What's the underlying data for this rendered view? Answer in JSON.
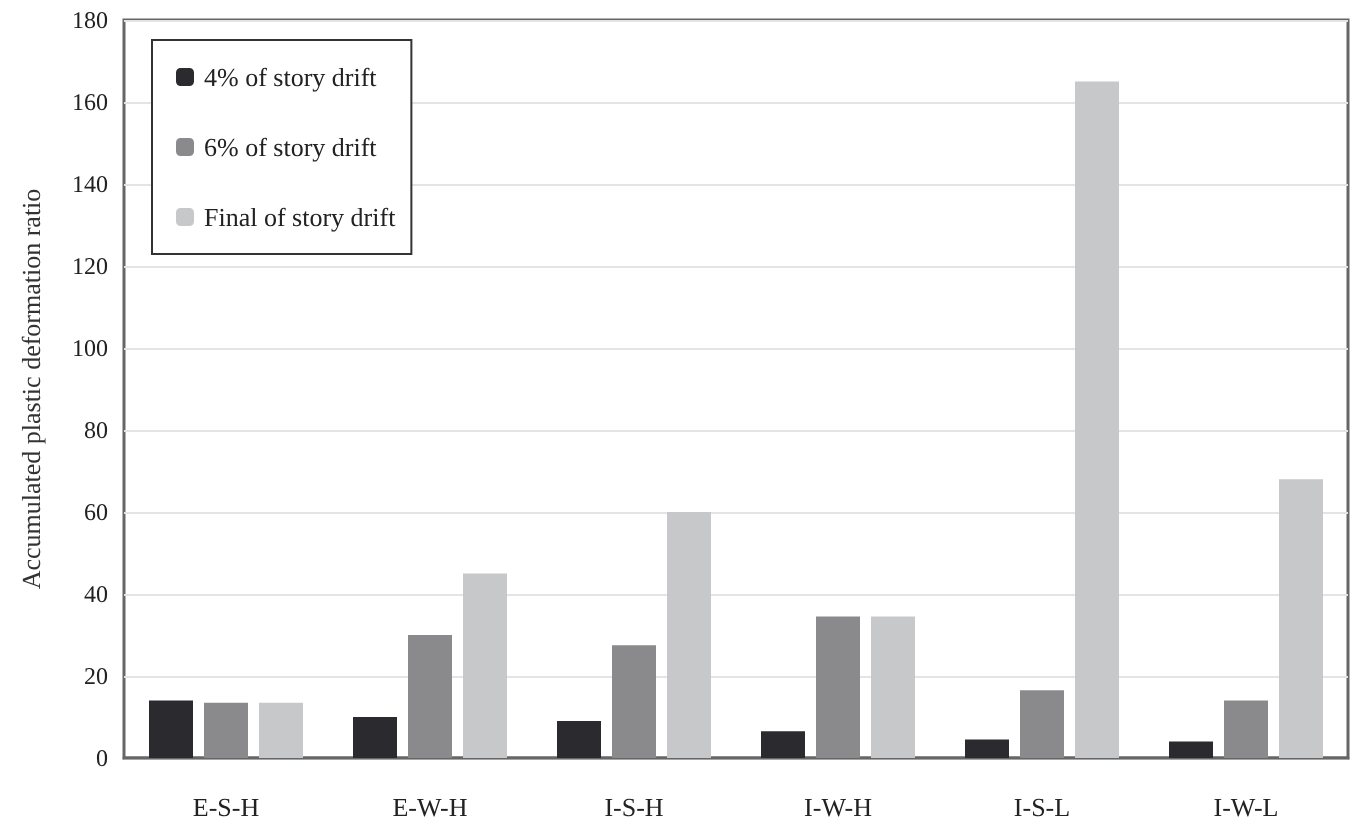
{
  "chart_data": {
    "type": "bar",
    "ylabel": "Accumulated plastic deformation ratio",
    "categories": [
      "E-S-H",
      "E-W-H",
      "I-S-H",
      "I-W-H",
      "I-S-L",
      "I-W-L"
    ],
    "series": [
      {
        "name": "4% of story drift",
        "color": "#2b2b2f",
        "values": [
          14,
          10,
          9,
          6.5,
          4.5,
          4
        ]
      },
      {
        "name": "6% of story drift",
        "color": "#8a8a8c",
        "values": [
          13.5,
          30,
          27.5,
          34.5,
          16.5,
          14
        ]
      },
      {
        "name": "Final of story drift",
        "color": "#c6c8c9",
        "values": [
          13.5,
          45,
          60,
          34.5,
          165,
          68
        ]
      }
    ],
    "ylim": [
      0,
      180
    ],
    "yticks": [
      0,
      20,
      40,
      60,
      80,
      100,
      120,
      140,
      160,
      180
    ],
    "grid": "y",
    "legend": "top left"
  }
}
